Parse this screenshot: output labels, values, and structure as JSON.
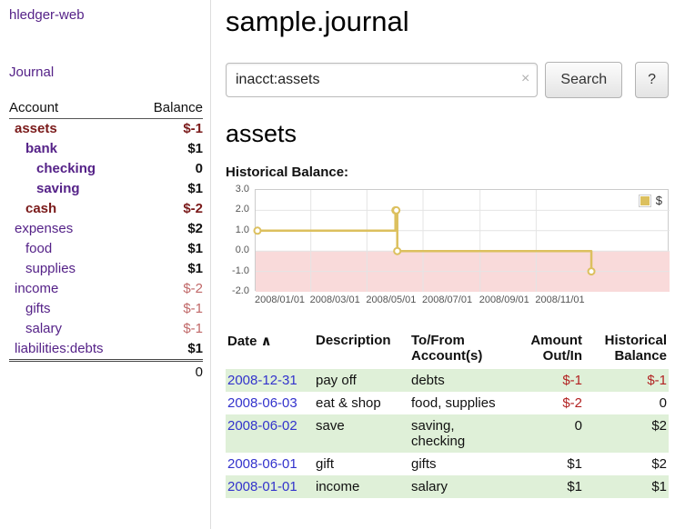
{
  "colors": {
    "accent_purple": "#552288",
    "link_blue": "#3333cc",
    "negative_dark": "#7a1a1a",
    "negative": "#b22222",
    "negative_soft": "#c06868",
    "row_green": "#dff0d8"
  },
  "sidebar": {
    "app_title": "hledger-web",
    "nav": {
      "journal": "Journal"
    },
    "accounts": {
      "headers": {
        "account": "Account",
        "balance": "Balance"
      },
      "rows": [
        {
          "name": "assets",
          "balance": "$-1",
          "indent": 0,
          "name_bold": true,
          "name_negative": true,
          "balance_bold": true,
          "balance_negative": true
        },
        {
          "name": "bank",
          "balance": "$1",
          "indent": 1,
          "name_bold": true,
          "name_negative": false,
          "balance_bold": true,
          "balance_negative": false
        },
        {
          "name": "checking",
          "balance": "0",
          "indent": 2,
          "name_bold": true,
          "name_negative": false,
          "balance_bold": true,
          "balance_negative": false
        },
        {
          "name": "saving",
          "balance": "$1",
          "indent": 2,
          "name_bold": true,
          "name_negative": false,
          "balance_bold": true,
          "balance_negative": false
        },
        {
          "name": "cash",
          "balance": "$-2",
          "indent": 1,
          "name_bold": true,
          "name_negative": true,
          "balance_bold": true,
          "balance_negative": true
        },
        {
          "name": "expenses",
          "balance": "$2",
          "indent": 0,
          "name_bold": false,
          "name_negative": false,
          "balance_bold": true,
          "balance_negative": false
        },
        {
          "name": "food",
          "balance": "$1",
          "indent": 1,
          "name_bold": false,
          "name_negative": false,
          "balance_bold": true,
          "balance_negative": false
        },
        {
          "name": "supplies",
          "balance": "$1",
          "indent": 1,
          "name_bold": false,
          "name_negative": false,
          "balance_bold": true,
          "balance_negative": false
        },
        {
          "name": "income",
          "balance": "$-2",
          "indent": 0,
          "name_bold": false,
          "name_negative": false,
          "balance_bold": false,
          "balance_negative": true
        },
        {
          "name": "gifts",
          "balance": "$-1",
          "indent": 1,
          "name_bold": false,
          "name_negative": false,
          "balance_bold": false,
          "balance_negative": true
        },
        {
          "name": "salary",
          "balance": "$-1",
          "indent": 1,
          "name_bold": false,
          "name_negative": false,
          "balance_bold": false,
          "balance_negative": true
        },
        {
          "name": "liabilities:debts",
          "balance": "$1",
          "indent": 0,
          "name_bold": false,
          "name_negative": false,
          "balance_bold": true,
          "balance_negative": false
        }
      ],
      "total": "0"
    }
  },
  "main": {
    "title": "sample.journal",
    "search": {
      "value": "inacct:assets",
      "clear_icon": "×",
      "search_button": "Search",
      "help_button": "?"
    },
    "account_heading": "assets",
    "chart_label": "Historical Balance:",
    "register": {
      "columns": [
        {
          "key": "date",
          "label": "Date",
          "sort_indicator": "∧",
          "align": "left",
          "sortable": true
        },
        {
          "key": "description",
          "label": "Description",
          "align": "left",
          "sortable": false
        },
        {
          "key": "accounts",
          "label": "To/From\nAccount(s)",
          "align": "left",
          "sortable": false
        },
        {
          "key": "amount",
          "label": "Amount\nOut/In",
          "align": "right",
          "sortable": false
        },
        {
          "key": "balance",
          "label": "Historical\nBalance",
          "align": "right",
          "sortable": false
        }
      ],
      "rows": [
        {
          "date": "2008-12-31",
          "description": "pay off",
          "accounts": "debts",
          "amount": "$-1",
          "amount_negative": true,
          "balance": "$-1",
          "balance_negative": true
        },
        {
          "date": "2008-06-03",
          "description": "eat & shop",
          "accounts": "food, supplies",
          "amount": "$-2",
          "amount_negative": true,
          "balance": "0",
          "balance_negative": false
        },
        {
          "date": "2008-06-02",
          "description": "save",
          "accounts": "saving,\nchecking",
          "amount": "0",
          "amount_negative": false,
          "balance": "$2",
          "balance_negative": false
        },
        {
          "date": "2008-06-01",
          "description": "gift",
          "accounts": "gifts",
          "amount": "$1",
          "amount_negative": false,
          "balance": "$2",
          "balance_negative": false
        },
        {
          "date": "2008-01-01",
          "description": "income",
          "accounts": "salary",
          "amount": "$1",
          "amount_negative": false,
          "balance": "$1",
          "balance_negative": false
        }
      ]
    }
  },
  "chart_data": {
    "type": "line",
    "title": "Historical Balance:",
    "legend_position": "top-right",
    "grid": true,
    "line_color": "#dcc05e",
    "negative_region_color": "#f9dada",
    "ylim": [
      -2.0,
      3.0
    ],
    "yticks": [
      "3.0",
      "2.0",
      "1.0",
      "0.0",
      "-1.0",
      "-2.0"
    ],
    "xlim": [
      "2008-01-01",
      "2009-03-26"
    ],
    "xticks": [
      {
        "label": "2008/01/01",
        "date": "2008-01-01"
      },
      {
        "label": "2008/03/01",
        "date": "2008-03-01"
      },
      {
        "label": "2008/05/01",
        "date": "2008-05-01"
      },
      {
        "label": "2008/07/01",
        "date": "2008-07-01"
      },
      {
        "label": "2008/09/01",
        "date": "2008-09-01"
      },
      {
        "label": "2008/11/01",
        "date": "2008-11-01"
      }
    ],
    "series": [
      {
        "name": "$",
        "step": true,
        "points": [
          {
            "date": "2008-01-01",
            "value": 1
          },
          {
            "date": "2008-06-01",
            "value": 2
          },
          {
            "date": "2008-06-02",
            "value": 2
          },
          {
            "date": "2008-06-03",
            "value": 0
          },
          {
            "date": "2008-12-31",
            "value": -1
          }
        ]
      }
    ]
  }
}
